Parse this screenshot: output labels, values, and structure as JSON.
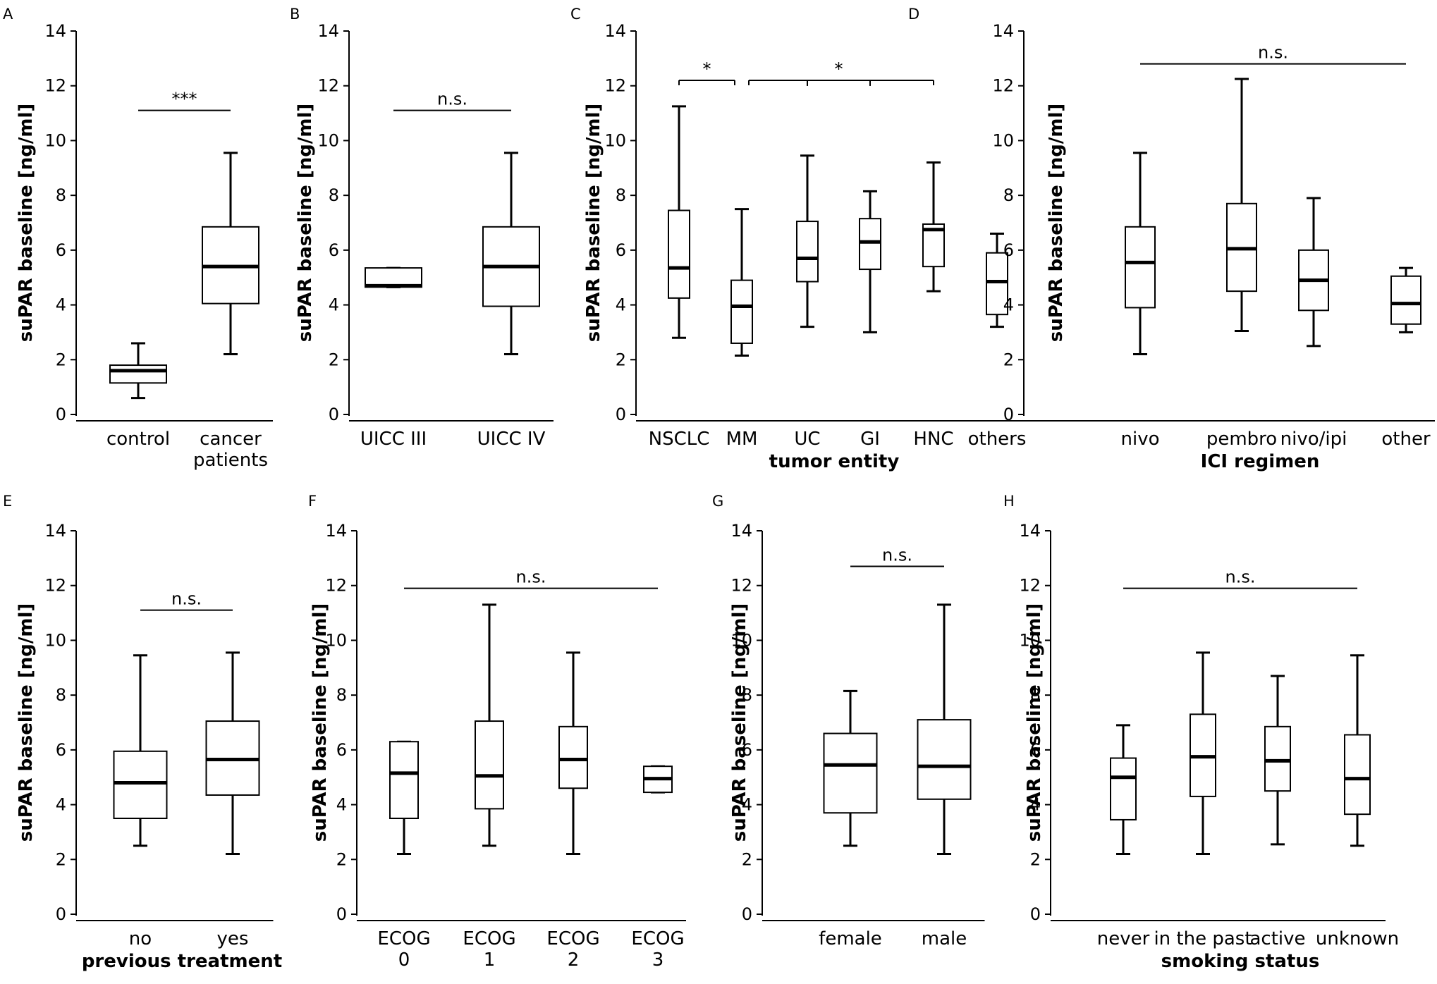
{
  "colors": {
    "ink": "#000000",
    "background": "#ffffff"
  },
  "chart_data": [
    {
      "panel": "A",
      "type": "boxplot",
      "ylabel": "suPAR baseline [ng/ml]",
      "xlabel": "",
      "ylim": [
        0,
        14
      ],
      "yticks": [
        "0",
        "2",
        "4",
        "6",
        "8",
        "10",
        "12",
        "14"
      ],
      "categories": [
        {
          "label": [
            "control"
          ],
          "min": 0.6,
          "q1": 1.15,
          "median": 1.6,
          "q3": 1.8,
          "max": 2.6
        },
        {
          "label": [
            "cancer",
            "patients"
          ],
          "min": 2.2,
          "q1": 4.05,
          "median": 5.4,
          "q3": 6.85,
          "max": 9.55
        }
      ],
      "significance": [
        {
          "from": 0,
          "to": 1,
          "y": 11.1,
          "label": "***"
        }
      ]
    },
    {
      "panel": "B",
      "type": "boxplot",
      "ylabel": "suPAR baseline [ng/ml]",
      "xlabel": "",
      "ylim": [
        0,
        14
      ],
      "yticks": [
        "0",
        "2",
        "4",
        "6",
        "8",
        "10",
        "12",
        "14"
      ],
      "categories": [
        {
          "label": [
            "UICC III"
          ],
          "min": 4.65,
          "q1": 4.65,
          "median": 4.7,
          "q3": 5.35,
          "max": 5.35
        },
        {
          "label": [
            "UICC IV"
          ],
          "min": 2.2,
          "q1": 3.95,
          "median": 5.4,
          "q3": 6.85,
          "max": 9.55
        }
      ],
      "significance": [
        {
          "from": 0,
          "to": 1,
          "y": 11.1,
          "label": "n.s."
        }
      ]
    },
    {
      "panel": "C",
      "type": "boxplot",
      "ylabel": "suPAR baseline [ng/ml]",
      "xlabel": "tumor entity",
      "ylim": [
        0,
        14
      ],
      "yticks": [
        "0",
        "2",
        "4",
        "6",
        "8",
        "10",
        "12",
        "14"
      ],
      "categories": [
        {
          "label": [
            "NSCLC"
          ],
          "min": 2.8,
          "q1": 4.25,
          "median": 5.35,
          "q3": 7.45,
          "max": 11.25
        },
        {
          "label": [
            "MM"
          ],
          "min": 2.15,
          "q1": 2.6,
          "median": 3.95,
          "q3": 4.9,
          "max": 7.5
        },
        {
          "label": [
            "UC"
          ],
          "min": 3.2,
          "q1": 4.85,
          "median": 5.7,
          "q3": 7.05,
          "max": 9.45
        },
        {
          "label": [
            "GI"
          ],
          "min": 3.0,
          "q1": 5.3,
          "median": 6.3,
          "q3": 7.15,
          "max": 8.15
        },
        {
          "label": [
            "HNC"
          ],
          "min": 4.5,
          "q1": 5.4,
          "median": 6.75,
          "q3": 6.95,
          "max": 9.2
        },
        {
          "label": [
            "others"
          ],
          "min": 3.2,
          "q1": 3.65,
          "median": 4.85,
          "q3": 5.9,
          "max": 6.6
        }
      ],
      "significance": [
        {
          "from": 0,
          "to": 1,
          "y": 12.2,
          "label": "*"
        },
        {
          "from": 1,
          "to": 4,
          "y": 12.2,
          "label": "*",
          "ticks": [
            2,
            3
          ]
        }
      ]
    },
    {
      "panel": "D",
      "type": "boxplot",
      "ylabel": "suPAR baseline [ng/ml]",
      "xlabel": "ICI regimen",
      "ylim": [
        0,
        14
      ],
      "yticks": [
        "0",
        "2",
        "4",
        "6",
        "8",
        "10",
        "12",
        "14"
      ],
      "categories": [
        {
          "label": [
            "nivo"
          ],
          "min": 2.2,
          "q1": 3.9,
          "median": 5.55,
          "q3": 6.85,
          "max": 9.55
        },
        {
          "label": [
            "pembro"
          ],
          "min": 3.05,
          "q1": 4.5,
          "median": 6.05,
          "q3": 7.7,
          "max": 12.25
        },
        {
          "label": [
            "nivo/ipi"
          ],
          "min": 2.5,
          "q1": 3.8,
          "median": 4.9,
          "q3": 6.0,
          "max": 7.9
        },
        {
          "label": [
            "other"
          ],
          "min": 3.0,
          "q1": 3.3,
          "median": 4.05,
          "q3": 5.05,
          "max": 5.35
        }
      ],
      "significance": [
        {
          "from": 0,
          "to": 3,
          "y": 12.8,
          "label": "n.s."
        }
      ]
    },
    {
      "panel": "E",
      "type": "boxplot",
      "ylabel": "suPAR baseline [ng/ml]",
      "xlabel": "previous treatment",
      "ylim": [
        0,
        14
      ],
      "yticks": [
        "0",
        "2",
        "4",
        "6",
        "8",
        "10",
        "12",
        "14"
      ],
      "categories": [
        {
          "label": [
            "no"
          ],
          "min": 2.5,
          "q1": 3.5,
          "median": 4.8,
          "q3": 5.95,
          "max": 9.45
        },
        {
          "label": [
            "yes"
          ],
          "min": 2.2,
          "q1": 4.35,
          "median": 5.65,
          "q3": 7.05,
          "max": 9.55
        }
      ],
      "significance": [
        {
          "from": 0,
          "to": 1,
          "y": 11.1,
          "label": "n.s."
        }
      ]
    },
    {
      "panel": "F",
      "type": "boxplot",
      "ylabel": "suPAR baseline [ng/ml]",
      "xlabel": "",
      "ylim": [
        0,
        14
      ],
      "yticks": [
        "0",
        "2",
        "4",
        "6",
        "8",
        "10",
        "12",
        "14"
      ],
      "categories": [
        {
          "label": [
            "ECOG",
            "0"
          ],
          "min": 2.2,
          "q1": 3.5,
          "median": 5.15,
          "q3": 6.3,
          "max": 6.3
        },
        {
          "label": [
            "ECOG",
            "1"
          ],
          "min": 2.5,
          "q1": 3.85,
          "median": 5.05,
          "q3": 7.05,
          "max": 11.3
        },
        {
          "label": [
            "ECOG",
            "2"
          ],
          "min": 2.2,
          "q1": 4.6,
          "median": 5.65,
          "q3": 6.85,
          "max": 9.55
        },
        {
          "label": [
            "ECOG",
            "3"
          ],
          "min": 4.45,
          "q1": 4.45,
          "median": 4.95,
          "q3": 5.4,
          "max": 5.4
        }
      ],
      "significance": [
        {
          "from": 0,
          "to": 3,
          "y": 11.9,
          "label": "n.s."
        }
      ]
    },
    {
      "panel": "G",
      "type": "boxplot",
      "ylabel": "suPAR baseline [ng/ml]",
      "xlabel": "",
      "ylim": [
        0,
        14
      ],
      "yticks": [
        "0",
        "2",
        "4",
        "6",
        "8",
        "10",
        "12",
        "14"
      ],
      "categories": [
        {
          "label": [
            "female"
          ],
          "min": 2.5,
          "q1": 3.7,
          "median": 5.45,
          "q3": 6.6,
          "max": 8.15
        },
        {
          "label": [
            "male"
          ],
          "min": 2.2,
          "q1": 4.2,
          "median": 5.4,
          "q3": 7.1,
          "max": 11.3
        }
      ],
      "significance": [
        {
          "from": 0,
          "to": 1,
          "y": 12.7,
          "label": "n.s."
        }
      ]
    },
    {
      "panel": "H",
      "type": "boxplot",
      "ylabel": "suPAR baseline [ng/ml]",
      "xlabel": "smoking status",
      "ylim": [
        0,
        14
      ],
      "yticks": [
        "0",
        "2",
        "4",
        "6",
        "8",
        "10",
        "12",
        "14"
      ],
      "categories": [
        {
          "label": [
            "never"
          ],
          "min": 2.2,
          "q1": 3.45,
          "median": 5.0,
          "q3": 5.7,
          "max": 6.9
        },
        {
          "label": [
            "in the past"
          ],
          "min": 2.2,
          "q1": 4.3,
          "median": 5.75,
          "q3": 7.3,
          "max": 9.55
        },
        {
          "label": [
            "active"
          ],
          "min": 2.55,
          "q1": 4.5,
          "median": 5.6,
          "q3": 6.85,
          "max": 8.7
        },
        {
          "label": [
            "unknown"
          ],
          "min": 2.5,
          "q1": 3.65,
          "median": 4.95,
          "q3": 6.55,
          "max": 9.45
        }
      ],
      "significance": [
        {
          "from": 0,
          "to": 3,
          "y": 11.9,
          "label": "n.s."
        }
      ]
    }
  ]
}
